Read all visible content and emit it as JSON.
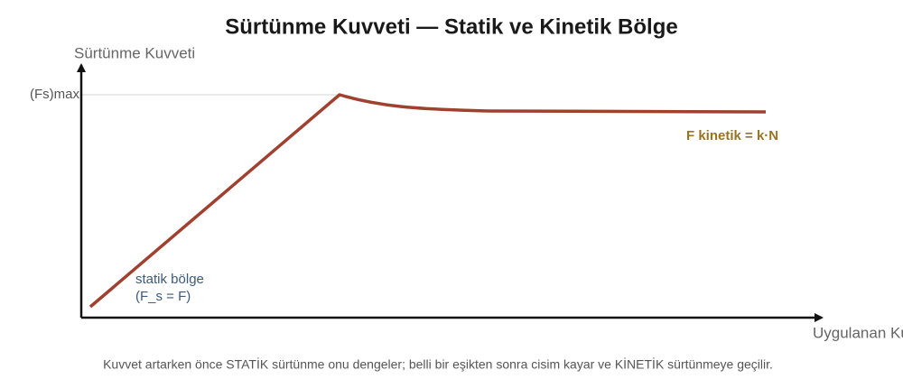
{
  "header": {
    "title": "Sürtünme Kuvveti — Statik ve Kinetik Bölge"
  },
  "axes": {
    "y_label": "Sürtünme Kuvveti",
    "y_marker": "(Fs)max",
    "x_label": "Uygulanan Kuvvet"
  },
  "annotations": {
    "kinetic": "F kinetik = k·N",
    "static_line1": "statik bölge",
    "static_line2": "(F_s = F)"
  },
  "caption": "Kuvvet artarken önce STATİK sürtünme onu dengeler; belli bir eşikten sonra cisim kayar ve KİNETİK sürtünmeye geçilir."
}
